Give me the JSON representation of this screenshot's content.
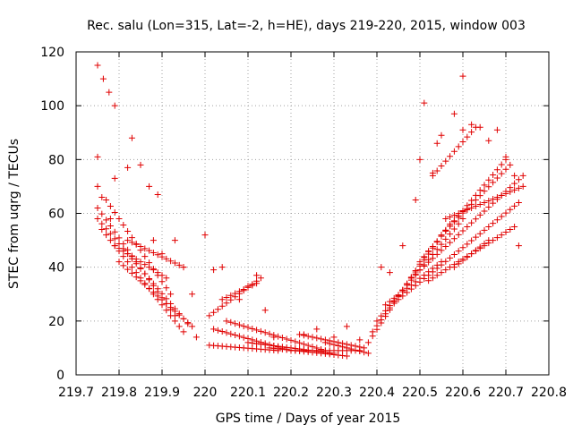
{
  "chart_data": {
    "type": "scatter",
    "title": "Rec. salu (Lon=315, Lat=-2, h=HE), days 219-220, 2015, window 003",
    "xlabel": "GPS time / Days of year 2015",
    "ylabel": "STEC from uqrg / TECUs",
    "xlim": [
      219.7,
      220.8
    ],
    "ylim": [
      0,
      120
    ],
    "xticks": [
      219.7,
      219.8,
      219.9,
      220,
      220.1,
      220.2,
      220.3,
      220.4,
      220.5,
      220.6,
      220.7,
      220.8
    ],
    "xtick_labels": [
      "219.7",
      "219.8",
      "219.9",
      "220",
      "220.1",
      "220.2",
      "220.3",
      "220.4",
      "220.5",
      "220.6",
      "220.7",
      "220.8"
    ],
    "yticks": [
      0,
      20,
      40,
      60,
      80,
      100,
      120
    ],
    "ytick_labels": [
      "0",
      "20",
      "40",
      "60",
      "80",
      "100",
      "120"
    ],
    "grid": true,
    "marker": "+",
    "color": "#e00000",
    "tracks": [
      {
        "x0": 219.75,
        "x1": 219.96,
        "y0": 58,
        "y1": 19,
        "n": 22
      },
      {
        "x0": 219.75,
        "x1": 219.93,
        "y0": 62,
        "y1": 22,
        "n": 19
      },
      {
        "x0": 219.76,
        "x1": 219.95,
        "y0": 54,
        "y1": 16,
        "n": 20
      },
      {
        "x0": 219.77,
        "x1": 219.92,
        "y0": 65,
        "y1": 30,
        "n": 16
      },
      {
        "x0": 219.79,
        "x1": 219.91,
        "y0": 48,
        "y1": 36,
        "n": 13
      },
      {
        "x0": 219.8,
        "x1": 219.97,
        "y0": 42,
        "y1": 18,
        "n": 18
      },
      {
        "x0": 219.82,
        "x1": 219.95,
        "y0": 50,
        "y1": 40,
        "n": 14
      },
      {
        "x0": 219.75,
        "x1": 219.79,
        "y0": 115,
        "y1": 100,
        "n": 4
      },
      {
        "x0": 220.01,
        "x1": 220.17,
        "y0": 11,
        "y1": 9,
        "n": 17
      },
      {
        "x0": 220.02,
        "x1": 220.2,
        "y0": 17,
        "y1": 9,
        "n": 19
      },
      {
        "x0": 220.05,
        "x1": 220.28,
        "y0": 20,
        "y1": 9,
        "n": 24
      },
      {
        "x0": 220.1,
        "x1": 220.3,
        "y0": 12,
        "y1": 8,
        "n": 21
      },
      {
        "x0": 220.15,
        "x1": 220.33,
        "y0": 10,
        "y1": 7,
        "n": 19
      },
      {
        "x0": 220.2,
        "x1": 220.36,
        "y0": 9,
        "y1": 9,
        "n": 17
      },
      {
        "x0": 220.22,
        "x1": 220.37,
        "y0": 15,
        "y1": 10,
        "n": 16
      },
      {
        "x0": 220.28,
        "x1": 220.38,
        "y0": 12,
        "y1": 8,
        "n": 11
      },
      {
        "x0": 220.01,
        "x1": 220.13,
        "y0": 22,
        "y1": 36,
        "n": 13
      },
      {
        "x0": 220.04,
        "x1": 220.12,
        "y0": 28,
        "y1": 34,
        "n": 9
      },
      {
        "x0": 220.38,
        "x1": 220.52,
        "y0": 12,
        "y1": 46,
        "n": 15
      },
      {
        "x0": 220.39,
        "x1": 220.57,
        "y0": 16,
        "y1": 56,
        "n": 19
      },
      {
        "x0": 220.4,
        "x1": 220.6,
        "y0": 20,
        "y1": 58,
        "n": 21
      },
      {
        "x0": 220.42,
        "x1": 220.55,
        "y0": 26,
        "y1": 42,
        "n": 14
      },
      {
        "x0": 220.45,
        "x1": 220.73,
        "y0": 28,
        "y1": 64,
        "n": 29
      },
      {
        "x0": 220.48,
        "x1": 220.74,
        "y0": 36,
        "y1": 74,
        "n": 27
      },
      {
        "x0": 220.5,
        "x1": 220.7,
        "y0": 42,
        "y1": 80,
        "n": 21
      },
      {
        "x0": 220.52,
        "x1": 220.72,
        "y0": 35,
        "y1": 55,
        "n": 21
      },
      {
        "x0": 220.55,
        "x1": 220.71,
        "y0": 52,
        "y1": 78,
        "n": 17
      },
      {
        "x0": 220.56,
        "x1": 220.74,
        "y0": 58,
        "y1": 70,
        "n": 19
      },
      {
        "x0": 220.58,
        "x1": 220.66,
        "y0": 40,
        "y1": 50,
        "n": 9
      },
      {
        "x0": 220.53,
        "x1": 220.63,
        "y0": 74,
        "y1": 92,
        "n": 11
      }
    ],
    "points": [
      [
        219.75,
        81
      ],
      [
        219.75,
        70
      ],
      [
        219.76,
        66
      ],
      [
        219.78,
        58
      ],
      [
        219.79,
        73
      ],
      [
        219.83,
        88
      ],
      [
        219.85,
        78
      ],
      [
        219.87,
        70
      ],
      [
        219.89,
        67
      ],
      [
        219.82,
        77
      ],
      [
        219.9,
        45
      ],
      [
        219.88,
        50
      ],
      [
        219.93,
        50
      ],
      [
        219.95,
        40
      ],
      [
        219.97,
        30
      ],
      [
        219.98,
        14
      ],
      [
        220.0,
        52
      ],
      [
        220.02,
        39
      ],
      [
        220.04,
        40
      ],
      [
        220.08,
        28
      ],
      [
        220.1,
        33
      ],
      [
        220.12,
        37
      ],
      [
        220.14,
        24
      ],
      [
        220.16,
        14
      ],
      [
        220.23,
        15
      ],
      [
        220.26,
        17
      ],
      [
        220.3,
        14
      ],
      [
        220.33,
        18
      ],
      [
        220.36,
        13
      ],
      [
        220.41,
        40
      ],
      [
        220.43,
        38
      ],
      [
        220.46,
        48
      ],
      [
        220.49,
        65
      ],
      [
        220.5,
        80
      ],
      [
        220.51,
        101
      ],
      [
        220.53,
        75
      ],
      [
        220.54,
        86
      ],
      [
        220.55,
        89
      ],
      [
        220.58,
        97
      ],
      [
        220.6,
        111
      ],
      [
        220.6,
        91
      ],
      [
        220.62,
        93
      ],
      [
        220.64,
        92
      ],
      [
        220.66,
        87
      ],
      [
        220.68,
        91
      ],
      [
        220.7,
        81
      ],
      [
        220.72,
        74
      ],
      [
        220.73,
        48
      ]
    ]
  }
}
